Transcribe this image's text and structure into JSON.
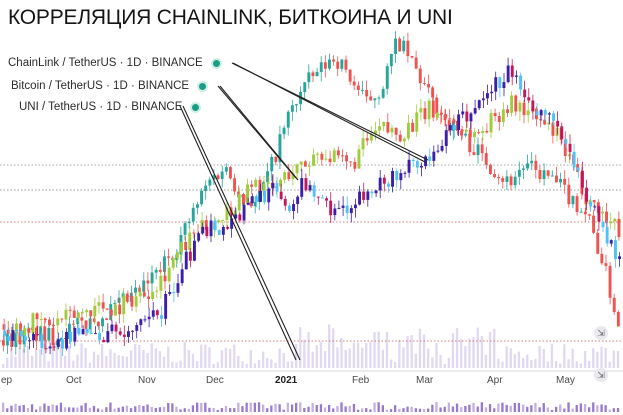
{
  "title": "КОРРЕЛЯЦИЯ CHAINLINK, БИТКОИНА И UNI",
  "legend": [
    {
      "label": "ChainLink / TetherUS · 1D · BINANCE"
    },
    {
      "label": "Bitcoin / TetherUS · 1D · BINANCE"
    },
    {
      "label": "UNI / TetherUS · 1D · BINANCE"
    }
  ],
  "icons": {
    "legend_dot": "eye-dot-icon",
    "scroll": "scroll-icon"
  },
  "colors": {
    "up": "#26a69a",
    "down": "#ef5350",
    "chainlink": "#2aa090",
    "bitcoin": "#9fcc3a",
    "uni_up": "#3b1fa8",
    "uni_down": "#c2185b",
    "uni_alt": "#4fc3f7",
    "volume": "#c9b8e8",
    "link_line": "#222222"
  },
  "chart_data": {
    "type": "candlestick",
    "title": "КОРРЕЛЯЦИЯ CHAINLINK, БИТКОИНА И UNI",
    "x_tick_labels": [
      "ep",
      "Oct",
      "Nov",
      "Dec",
      "2021",
      "Feb",
      "Mar",
      "Apr",
      "May"
    ],
    "series": [
      {
        "name": "ChainLink / TetherUS · 1D · BINANCE",
        "values_norm": [
          0.05,
          0.06,
          0.07,
          0.06,
          0.08,
          0.1,
          0.12,
          0.15,
          0.18,
          0.22,
          0.28,
          0.35,
          0.45,
          0.55,
          0.6,
          0.52,
          0.48,
          0.6,
          0.75,
          0.85,
          0.9,
          0.95,
          0.88,
          0.8,
          0.85,
          1.0,
          0.92,
          0.82,
          0.75,
          0.7,
          0.65,
          0.6,
          0.55,
          0.6,
          0.58,
          0.55,
          0.5,
          0.45,
          0.3,
          0.1
        ]
      },
      {
        "name": "Bitcoin / TetherUS · 1D · BINANCE",
        "values_norm": [
          0.1,
          0.09,
          0.11,
          0.1,
          0.12,
          0.14,
          0.16,
          0.15,
          0.18,
          0.2,
          0.25,
          0.32,
          0.38,
          0.42,
          0.45,
          0.5,
          0.55,
          0.52,
          0.58,
          0.6,
          0.65,
          0.62,
          0.6,
          0.68,
          0.72,
          0.7,
          0.74,
          0.78,
          0.76,
          0.72,
          0.7,
          0.75,
          0.8,
          0.78,
          0.74,
          0.7,
          0.6,
          0.5,
          0.45,
          0.4
        ]
      },
      {
        "name": "UNI / TetherUS · 1D · BINANCE",
        "values_norm": [
          0.08,
          0.05,
          0.04,
          0.06,
          0.05,
          0.07,
          0.06,
          0.08,
          0.07,
          0.1,
          0.15,
          0.25,
          0.35,
          0.42,
          0.4,
          0.45,
          0.5,
          0.52,
          0.48,
          0.55,
          0.5,
          0.45,
          0.48,
          0.52,
          0.55,
          0.58,
          0.6,
          0.62,
          0.7,
          0.75,
          0.8,
          0.85,
          0.9,
          0.82,
          0.78,
          0.72,
          0.6,
          0.5,
          0.4,
          0.3
        ]
      }
    ],
    "legend_position": "top-left",
    "grid": false
  }
}
